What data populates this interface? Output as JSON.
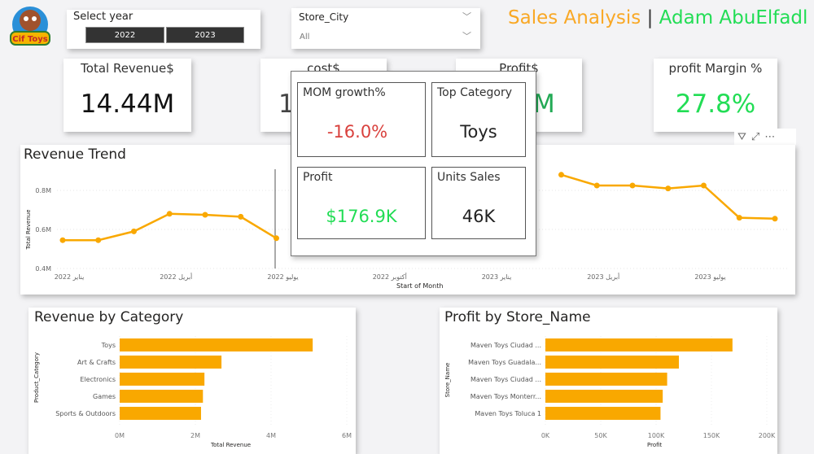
{
  "logo": {
    "text": "Cif Toys"
  },
  "year_slicer": {
    "title": "Select year",
    "options": [
      "2022",
      "2023"
    ]
  },
  "city_slicer": {
    "title": "Store_City",
    "value": "All"
  },
  "header": {
    "title": "Sales Analysis",
    "separator": "|",
    "author": "Adam AbuElfadl",
    "colors": {
      "title": "#f9a825",
      "author": "#22dd55"
    }
  },
  "kpis": [
    {
      "title": "Total Revenue$",
      "value": "14.44M"
    },
    {
      "title": "cost$",
      "value": "1"
    },
    {
      "title": "Profit$",
      "value": "M"
    },
    {
      "title": "profit Margin %",
      "value": "27.8%"
    }
  ],
  "tooltip": {
    "mom": {
      "title": "MOM growth%",
      "value": "-16.0%"
    },
    "top_category": {
      "title": "Top Category",
      "value": "Toys"
    },
    "profit": {
      "title": "Profit",
      "value": "$176.9K"
    },
    "units": {
      "title": "Units Sales",
      "value": "46K"
    }
  },
  "visual_header": {
    "icons": [
      "filter-icon",
      "focus-mode-icon",
      "more-options-icon"
    ]
  },
  "chart_data": [
    {
      "type": "line",
      "title": "Revenue Trend",
      "xlabel": "Start of Month",
      "ylabel": "Total Revenue",
      "x_ticks": [
        "يناير 2022",
        "أبريل 2022",
        "يوليو 2022",
        "أكتوبر 2022",
        "يناير 2023",
        "أبريل 2023",
        "يوليو 2023"
      ],
      "y_ticks": [
        "0.4M",
        "0.6M",
        "0.8M"
      ],
      "ylim": [
        0.4,
        0.92
      ],
      "x": [
        "2022-01",
        "2022-02",
        "2022-03",
        "2022-04",
        "2022-05",
        "2022-06",
        "2022-07",
        "2022-08",
        "2022-09",
        "2022-10",
        "2022-11",
        "2022-12",
        "2023-01",
        "2023-02",
        "2023-03",
        "2023-04",
        "2023-05",
        "2023-06",
        "2023-07",
        "2023-08",
        "2023-09"
      ],
      "values": [
        0.545,
        0.545,
        0.59,
        0.68,
        0.675,
        0.665,
        0.555,
        null,
        null,
        null,
        null,
        null,
        null,
        null,
        0.88,
        0.825,
        0.825,
        0.81,
        0.825,
        0.66,
        0.655
      ],
      "color": "#f9a800",
      "grid": true
    },
    {
      "type": "bar",
      "orientation": "horizontal",
      "title": "Revenue by Category",
      "xlabel": "Total Revenue",
      "ylabel": "Product_Category",
      "categories": [
        "Toys",
        "Art & Crafts",
        "Electronics",
        "Games",
        "Sports & Outdoors"
      ],
      "values": [
        5.1,
        2.69,
        2.24,
        2.2,
        2.15
      ],
      "x_ticks": [
        "0M",
        "2M",
        "4M",
        "6M"
      ],
      "xlim": [
        0,
        6
      ],
      "color": "#f9a800"
    },
    {
      "type": "bar",
      "orientation": "horizontal",
      "title": "Profit by Store_Name",
      "xlabel": "Profit",
      "ylabel": "Store_Name",
      "categories": [
        "Maven Toys Ciudad ...",
        "Maven Toys Guadala...",
        "Maven Toys Ciudad ...",
        "Maven Toys Monterr...",
        "Maven Toys Toluca 1"
      ],
      "values": [
        169,
        120.6,
        110,
        106,
        104
      ],
      "x_ticks": [
        "0K",
        "50K",
        "100K",
        "150K",
        "200K"
      ],
      "xlim": [
        0,
        200
      ],
      "color": "#f9a800"
    }
  ]
}
